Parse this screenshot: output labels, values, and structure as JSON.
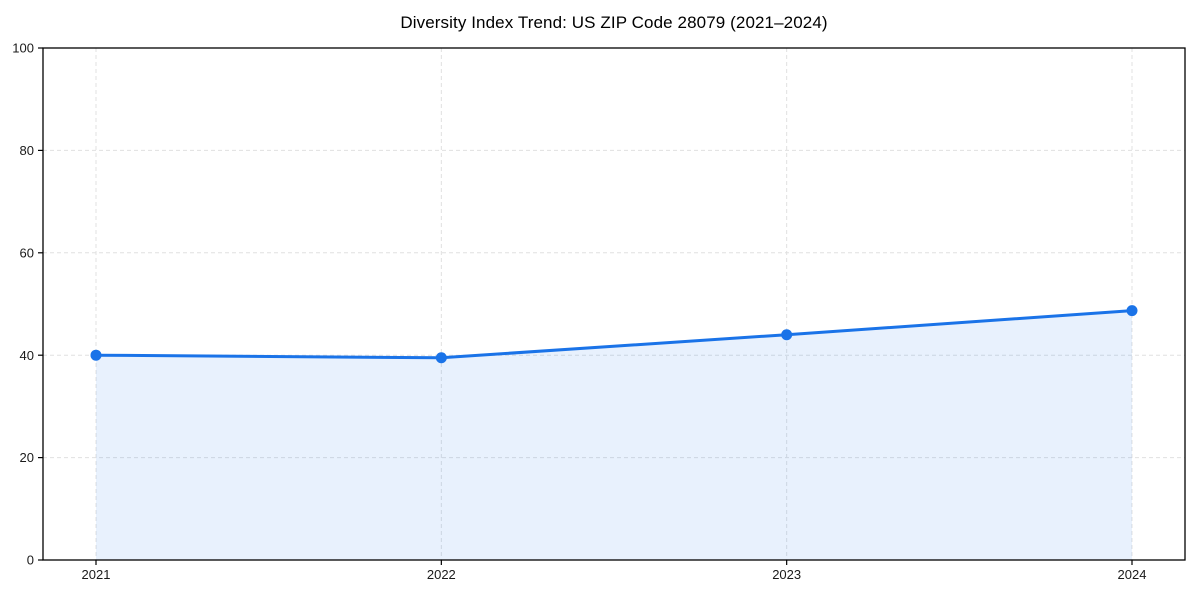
{
  "chart_data": {
    "type": "line",
    "title": "Diversity Index Trend: US ZIP Code 28079 (2021–2024)",
    "x_categories": [
      "2021",
      "2022",
      "2023",
      "2024"
    ],
    "series": [
      {
        "name": "Diversity Index",
        "values": [
          40.0,
          39.5,
          44.0,
          48.7
        ],
        "color": "#1a73e8",
        "marker": "circle",
        "marker_radius": 5.5,
        "line_width": 3,
        "area_fill": true,
        "area_opacity": 0.1
      }
    ],
    "xlabel": "",
    "ylabel": "",
    "ylim": [
      0,
      100
    ],
    "yticks": [
      0,
      20,
      40,
      60,
      80,
      100
    ],
    "grid": true,
    "grid_style": "dashed",
    "grid_color": "#e0e0e0",
    "axis_color": "#000000",
    "tick_label_color": "#1a1a1a",
    "legend": false,
    "background_color": "#ffffff"
  }
}
